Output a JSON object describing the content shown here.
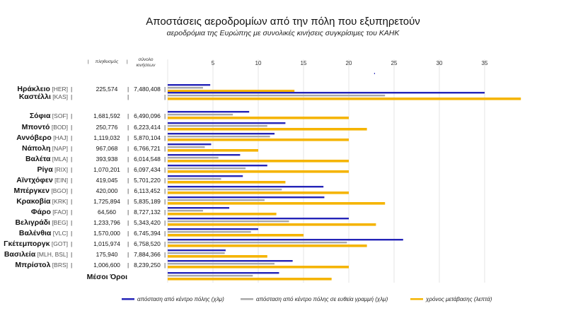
{
  "header": {
    "title": "Αποστάσεις αεροδρομίων από την πόλη που εξυπηρετούν",
    "subtitle": "αεροδρόμια της Ευρώπης με συνολικές κινήσεις συγκρίσιμες του ΚΑΗΚ"
  },
  "chart_data": {
    "type": "bar",
    "orientation": "horizontal",
    "title": "Αποστάσεις αεροδρομίων από την πόλη που εξυπηρετούν",
    "subtitle": "αεροδρόμια της Ευρώπης με συνολικές κινήσεις συγκρίσιμες του ΚΑΗΚ",
    "column_headers": {
      "population": "πληθυσμός",
      "traffic": "σύνολο κινήσεων"
    },
    "xlim": [
      0,
      40
    ],
    "xticks": [
      5,
      10,
      15,
      20,
      25,
      30,
      35
    ],
    "grid": true,
    "legend_position": "bottom",
    "categories": [
      {
        "name": "Ηράκλειο",
        "code": "[HER]",
        "population": "225,574",
        "traffic": "7,480,408",
        "group": "top"
      },
      {
        "name": "Καστέλλι",
        "code": "[KAS]",
        "population": "",
        "traffic": "",
        "group": "top"
      },
      {
        "name": "Σόφια",
        "code": "[SOF]",
        "population": "1,681,592",
        "traffic": "6,490,096",
        "group": "main"
      },
      {
        "name": "Μποντό",
        "code": "[BOD]",
        "population": "250,776",
        "traffic": "6,223,414",
        "group": "main"
      },
      {
        "name": "Αννόβερο",
        "code": "[HAJ]",
        "population": "1,119,032",
        "traffic": "5,870,104",
        "group": "main"
      },
      {
        "name": "Νάπολη",
        "code": "[NAP]",
        "population": "967,068",
        "traffic": "6,766,721",
        "group": "main"
      },
      {
        "name": "Βαλέτα",
        "code": "[MLA]",
        "population": "393,938",
        "traffic": "6,014,548",
        "group": "main"
      },
      {
        "name": "Ρίγα",
        "code": "[RIX]",
        "population": "1,070,201",
        "traffic": "6,097,434",
        "group": "main"
      },
      {
        "name": "Αϊντχόφεν",
        "code": "[EIN]",
        "population": "419,045",
        "traffic": "5,701,220",
        "group": "main"
      },
      {
        "name": "Μπέργκεν",
        "code": "[BGO]",
        "population": "420,000",
        "traffic": "6,113,452",
        "group": "main"
      },
      {
        "name": "Κρακοβία",
        "code": "[KRK]",
        "population": "1,725,894",
        "traffic": "5,835,189",
        "group": "main"
      },
      {
        "name": "Φάρο",
        "code": "[FAO]",
        "population": "64,560",
        "traffic": "8,727,132",
        "group": "main"
      },
      {
        "name": "Βελιγράδι",
        "code": "[BEG]",
        "population": "1,233,796",
        "traffic": "5,343,420",
        "group": "main"
      },
      {
        "name": "Βαλένθια",
        "code": "[VLC]",
        "population": "1,570,000",
        "traffic": "6,745,394",
        "group": "main"
      },
      {
        "name": "Γκέτεμποργκ",
        "code": "[GOT]",
        "population": "1,015,974",
        "traffic": "6,758,520",
        "group": "main"
      },
      {
        "name": "Βασιλεία",
        "code": "[MLH, BSL]",
        "population": "175,940",
        "traffic": "7,884,366",
        "group": "main"
      },
      {
        "name": "Μπρίστολ",
        "code": "[BRS]",
        "population": "1,006,600",
        "traffic": "8,239,250",
        "group": "main"
      },
      {
        "name": "Μέσοι Όροι",
        "code": "",
        "population": "",
        "traffic": "",
        "group": "avg"
      }
    ],
    "series": [
      {
        "name": "απόσταση από κέντρο πόλης (χλμ)",
        "color": "#2424b8",
        "values": [
          4.7,
          35,
          9,
          13,
          11.8,
          4.8,
          8,
          11,
          8.3,
          17.2,
          17.3,
          6.8,
          20,
          10,
          26,
          6.4,
          13.8,
          12.3
        ]
      },
      {
        "name": "απόσταση από κέντρο πόλης σε ευθεία γραμμή (χλμ)",
        "color": "#a8a8a8",
        "values": [
          3.9,
          24,
          7.2,
          11,
          11.3,
          4.1,
          5.6,
          8.6,
          5.9,
          12.6,
          10.7,
          3.9,
          13.4,
          9.2,
          19.8,
          6.3,
          11.8,
          9.4
        ]
      },
      {
        "name": "χρόνος μετάβασης (λεπτά)",
        "color": "#f5b400",
        "values": [
          14,
          39,
          20,
          22,
          20,
          10,
          20,
          20,
          13,
          20,
          24,
          12,
          23,
          15,
          22,
          11,
          20,
          18.1
        ]
      }
    ]
  }
}
